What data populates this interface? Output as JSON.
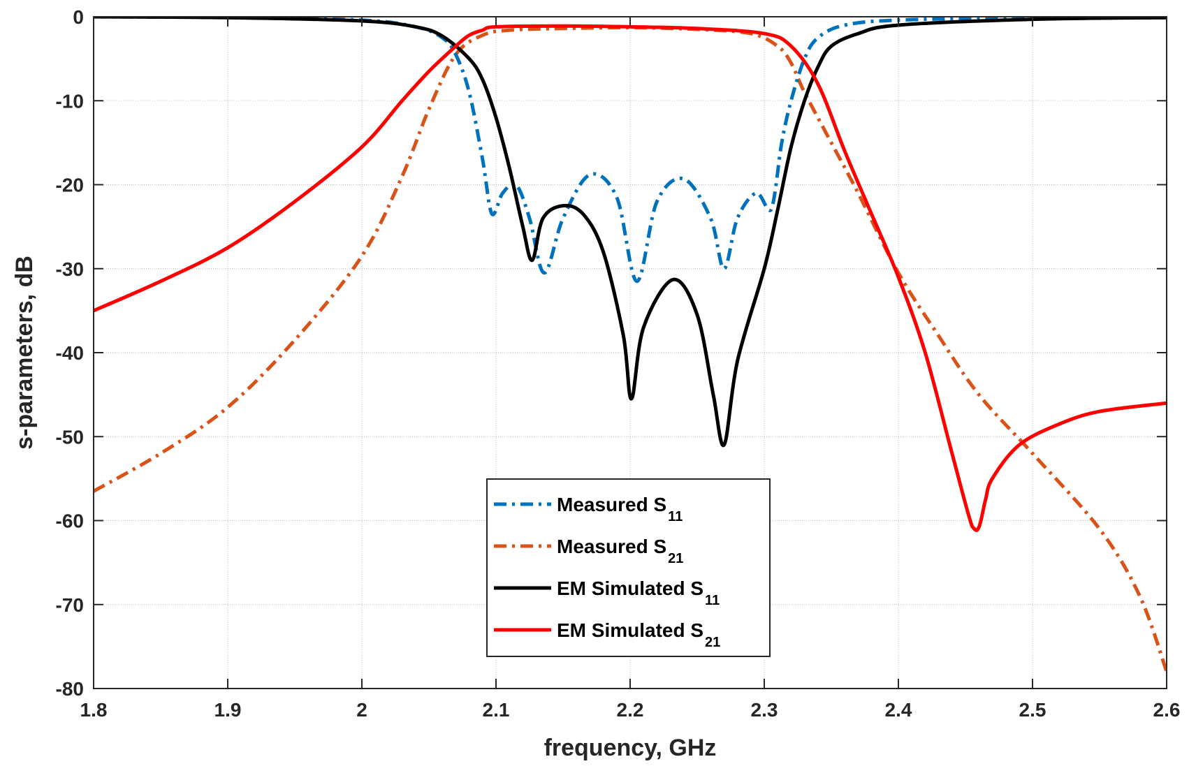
{
  "chart_data": {
    "type": "line",
    "title": "",
    "xlabel": "frequency, GHz",
    "ylabel": "s-parameters, dB",
    "xlim": [
      1.8,
      2.6
    ],
    "ylim": [
      -80,
      0
    ],
    "x_ticks": [
      "1.8",
      "1.9",
      "2",
      "2.1",
      "2.2",
      "2.3",
      "2.4",
      "2.5",
      "2.6"
    ],
    "y_ticks": [
      "0",
      "-10",
      "-20",
      "-30",
      "-40",
      "-50",
      "-60",
      "-70",
      "-80"
    ],
    "x_tick_values": [
      1.8,
      1.9,
      2.0,
      2.1,
      2.2,
      2.3,
      2.4,
      2.5,
      2.6
    ],
    "y_tick_values": [
      0,
      -10,
      -20,
      -30,
      -40,
      -50,
      -60,
      -70,
      -80
    ],
    "legend_position": "lower-center",
    "series": [
      {
        "name": "Measured S11",
        "legend_main": "Measured S",
        "legend_sub": "11",
        "color": "#0072BD",
        "style": "dashdot",
        "x": [
          1.8,
          1.9,
          2.0,
          2.04,
          2.06,
          2.07,
          2.08,
          2.09,
          2.097,
          2.105,
          2.115,
          2.125,
          2.136,
          2.15,
          2.17,
          2.19,
          2.205,
          2.22,
          2.24,
          2.26,
          2.27,
          2.28,
          2.294,
          2.305,
          2.313,
          2.32,
          2.33,
          2.34,
          2.36,
          2.4,
          2.5,
          2.6
        ],
        "y": [
          0,
          -0.1,
          -0.4,
          -1.2,
          -2.5,
          -4.5,
          -9,
          -17,
          -23.5,
          -21,
          -20,
          -24,
          -30.5,
          -24,
          -18.8,
          -21.5,
          -31.5,
          -22,
          -19.3,
          -24,
          -30,
          -24,
          -21,
          -23,
          -15,
          -10,
          -5,
          -2.5,
          -1,
          -0.4,
          -0.1,
          0
        ]
      },
      {
        "name": "Measured S21",
        "legend_main": "Measured S",
        "legend_sub": "21",
        "color": "#D95319",
        "style": "dashdot",
        "x": [
          1.8,
          1.85,
          1.9,
          1.95,
          2.0,
          2.03,
          2.05,
          2.07,
          2.09,
          2.11,
          2.15,
          2.2,
          2.25,
          2.29,
          2.31,
          2.32,
          2.33,
          2.35,
          2.37,
          2.4,
          2.43,
          2.46,
          2.5,
          2.55,
          2.58,
          2.6
        ],
        "y": [
          -56.5,
          -52,
          -46.5,
          -38.5,
          -28.5,
          -19,
          -11,
          -4.5,
          -2.2,
          -1.6,
          -1.4,
          -1.3,
          -1.5,
          -2.0,
          -3.5,
          -5.5,
          -9,
          -15,
          -21,
          -30.5,
          -38,
          -45,
          -52,
          -61,
          -69,
          -78
        ]
      },
      {
        "name": "EM Simulated S11",
        "legend_main": "EM Simulated S",
        "legend_sub": "11",
        "color": "#000000",
        "style": "solid",
        "x": [
          1.8,
          1.9,
          2.0,
          2.04,
          2.06,
          2.08,
          2.09,
          2.1,
          2.11,
          2.12,
          2.127,
          2.135,
          2.15,
          2.165,
          2.18,
          2.195,
          2.201,
          2.21,
          2.232,
          2.25,
          2.262,
          2.27,
          2.28,
          2.3,
          2.31,
          2.32,
          2.33,
          2.34,
          2.35,
          2.37,
          2.4,
          2.5,
          2.6
        ],
        "y": [
          0,
          -0.1,
          -0.5,
          -1.2,
          -2.3,
          -5,
          -7.5,
          -12,
          -18,
          -25,
          -29,
          -24,
          -22.5,
          -23.5,
          -28,
          -38,
          -45.5,
          -37,
          -31.3,
          -35.5,
          -45,
          -51,
          -41,
          -30,
          -23,
          -15.5,
          -10,
          -6,
          -3.5,
          -2,
          -1,
          -0.3,
          -0.1
        ]
      },
      {
        "name": "EM Simulated S21",
        "legend_main": "EM Simulated S",
        "legend_sub": "21",
        "color": "#FF0000",
        "style": "solid",
        "x": [
          1.8,
          1.85,
          1.9,
          1.95,
          2.0,
          2.03,
          2.05,
          2.07,
          2.08,
          2.09,
          2.1,
          2.15,
          2.2,
          2.25,
          2.3,
          2.32,
          2.34,
          2.36,
          2.38,
          2.4,
          2.42,
          2.44,
          2.455,
          2.46,
          2.465,
          2.47,
          2.49,
          2.52,
          2.55,
          2.6
        ],
        "y": [
          -35,
          -31.5,
          -27.5,
          -22,
          -15.5,
          -10,
          -6.5,
          -3.5,
          -2.2,
          -1.6,
          -1.2,
          -1.1,
          -1.2,
          -1.4,
          -2.0,
          -3.5,
          -8,
          -16,
          -23.5,
          -31,
          -40,
          -52,
          -60.7,
          -60.8,
          -57.5,
          -55,
          -51,
          -48.5,
          -47,
          -46
        ]
      }
    ]
  }
}
